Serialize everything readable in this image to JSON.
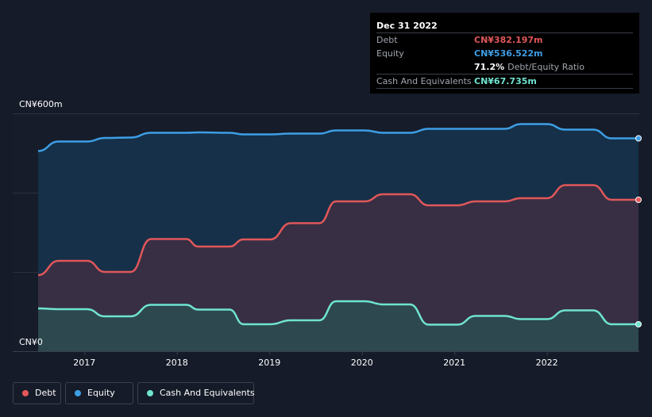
{
  "chart_data": {
    "type": "area",
    "title": "",
    "xlabel": "",
    "ylabel": "",
    "ylim": [
      0,
      600
    ],
    "y_tick_labels": [
      "CN¥0",
      "CN¥600m"
    ],
    "x_tick_labels": [
      "2017",
      "2018",
      "2019",
      "2020",
      "2021",
      "2022"
    ],
    "x": [
      2016.5,
      2016.72,
      2017.03,
      2017.22,
      2017.5,
      2017.72,
      2018.1,
      2018.23,
      2018.57,
      2018.72,
      2019.01,
      2019.23,
      2019.54,
      2019.72,
      2020.03,
      2020.23,
      2020.52,
      2020.72,
      2021.03,
      2021.23,
      2021.54,
      2021.72,
      2022.0,
      2022.2,
      2022.5,
      2022.7,
      2022.99
    ],
    "series": [
      {
        "name": "Equity",
        "color": "#3d9ee5",
        "values": [
          505,
          529,
          529,
          538,
          539,
          551,
          551,
          552,
          551,
          547,
          547,
          549,
          549,
          557,
          557,
          551,
          551,
          561,
          561,
          561,
          561,
          573,
          573,
          559,
          559,
          537,
          537
        ]
      },
      {
        "name": "Debt",
        "color": "#e15759",
        "values": [
          192,
          228,
          228,
          200,
          200,
          283,
          283,
          264,
          264,
          282,
          282,
          323,
          323,
          378,
          378,
          396,
          396,
          368,
          368,
          378,
          378,
          386,
          386,
          419,
          419,
          382,
          382
        ]
      },
      {
        "name": "Cash And Equivalents",
        "color": "#6fe3cf",
        "values": [
          108,
          106,
          106,
          88,
          88,
          117,
          117,
          105,
          105,
          68,
          68,
          78,
          78,
          126,
          126,
          118,
          118,
          67,
          67,
          89,
          89,
          81,
          81,
          103,
          103,
          68,
          68
        ]
      }
    ]
  },
  "tooltip": {
    "date": "Dec 31 2022",
    "rows": [
      {
        "label": "Debt",
        "value": "CN¥382.197m",
        "color": "#e15759"
      },
      {
        "label": "Equity",
        "value": "CN¥536.522m",
        "color": "#3d9ee5"
      },
      {
        "ratio_pct": "71.2%",
        "ratio_label": "Debt/Equity Ratio"
      },
      {
        "label": "Cash And Equivalents",
        "value": "CN¥67.735m",
        "color": "#6fe3cf"
      }
    ]
  },
  "legend": [
    {
      "label": "Debt",
      "color": "#e15759"
    },
    {
      "label": "Equity",
      "color": "#3d9ee5"
    },
    {
      "label": "Cash And Equivalents",
      "color": "#6fe3cf"
    }
  ]
}
